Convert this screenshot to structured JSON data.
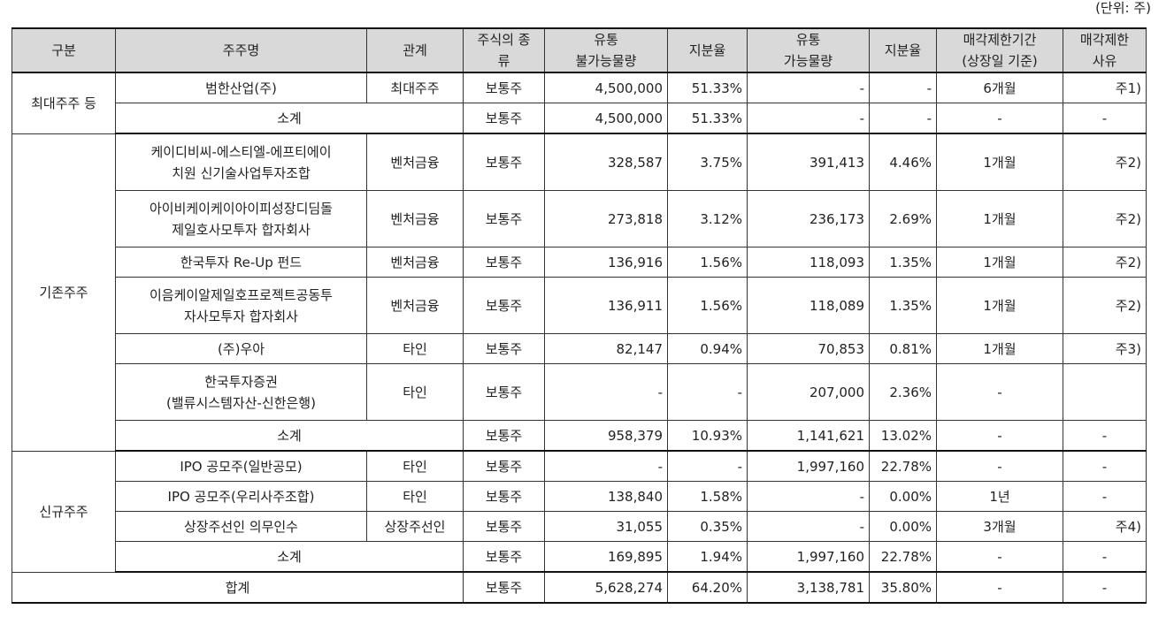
{
  "unit_note": "(단위: 주)",
  "headers": {
    "category": "구분",
    "holder": "주주명",
    "relation": "관계",
    "stock_type": [
      "주식의 종",
      "류"
    ],
    "locked_qty": [
      "유통",
      "불가능물량"
    ],
    "locked_ratio": "지분율",
    "tradable_qty": [
      "유통",
      "가능물량"
    ],
    "tradable_ratio": "지분율",
    "lockup_period": [
      "매각제한기간",
      "(상장일 기준)"
    ],
    "lockup_reason": [
      "매각제한",
      "사유"
    ]
  },
  "groups": {
    "largest": "최대주주 등",
    "existing": "기존주주",
    "new": "신규주주"
  },
  "rows": [
    {
      "holder": "범한산업(주)",
      "relation": "최대주주",
      "type": "보통주",
      "locked": "4,500,000",
      "locked_pct": "51.33%",
      "tradable": "-",
      "tradable_pct": "-",
      "period": "6개월",
      "reason": "주1)"
    },
    {
      "holder": "소계",
      "type": "보통주",
      "locked": "4,500,000",
      "locked_pct": "51.33%",
      "tradable": "-",
      "tradable_pct": "-",
      "period": "-",
      "reason": "-"
    },
    {
      "holder": [
        "케이디비씨-에스티엘-에프티에이",
        "치원 신기술사업투자조합"
      ],
      "relation": "벤처금융",
      "type": "보통주",
      "locked": "328,587",
      "locked_pct": "3.75%",
      "tradable": "391,413",
      "tradable_pct": "4.46%",
      "period": "1개월",
      "reason": "주2)"
    },
    {
      "holder": [
        "아이비케이케이아이피성장디딤돌",
        "제일호사모투자 합자회사"
      ],
      "relation": "벤처금융",
      "type": "보통주",
      "locked": "273,818",
      "locked_pct": "3.12%",
      "tradable": "236,173",
      "tradable_pct": "2.69%",
      "period": "1개월",
      "reason": "주2)"
    },
    {
      "holder": "한국투자 Re-Up 펀드",
      "relation": "벤처금융",
      "type": "보통주",
      "locked": "136,916",
      "locked_pct": "1.56%",
      "tradable": "118,093",
      "tradable_pct": "1.35%",
      "period": "1개월",
      "reason": "주2)"
    },
    {
      "holder": [
        "이음케이알제일호프로젝트공동투",
        "자사모투자 합자회사"
      ],
      "relation": "벤처금융",
      "type": "보통주",
      "locked": "136,911",
      "locked_pct": "1.56%",
      "tradable": "118,089",
      "tradable_pct": "1.35%",
      "period": "1개월",
      "reason": "주2)"
    },
    {
      "holder": "(주)우아",
      "relation": "타인",
      "type": "보통주",
      "locked": "82,147",
      "locked_pct": "0.94%",
      "tradable": "70,853",
      "tradable_pct": "0.81%",
      "period": "1개월",
      "reason": "주3)"
    },
    {
      "holder": [
        "한국투자증권",
        "(밸류시스템자산-신한은행)"
      ],
      "relation": "타인",
      "type": "보통주",
      "locked": "-",
      "locked_pct": "-",
      "tradable": "207,000",
      "tradable_pct": "2.36%",
      "period": "-",
      "reason": ""
    },
    {
      "holder": "소계",
      "type": "보통주",
      "locked": "958,379",
      "locked_pct": "10.93%",
      "tradable": "1,141,621",
      "tradable_pct": "13.02%",
      "period": "-",
      "reason": "-"
    },
    {
      "holder": "IPO 공모주(일반공모)",
      "relation": "타인",
      "type": "보통주",
      "locked": "-",
      "locked_pct": "-",
      "tradable": "1,997,160",
      "tradable_pct": "22.78%",
      "period": "-",
      "reason": "-"
    },
    {
      "holder": "IPO 공모주(우리사주조합)",
      "relation": "타인",
      "type": "보통주",
      "locked": "138,840",
      "locked_pct": "1.58%",
      "tradable": "-",
      "tradable_pct": "0.00%",
      "period": "1년",
      "reason": "-"
    },
    {
      "holder": "상장주선인 의무인수",
      "relation": "상장주선인",
      "type": "보통주",
      "locked": "31,055",
      "locked_pct": "0.35%",
      "tradable": "-",
      "tradable_pct": "0.00%",
      "period": "3개월",
      "reason": "주4)"
    },
    {
      "holder": "소계",
      "type": "보통주",
      "locked": "169,895",
      "locked_pct": "1.94%",
      "tradable": "1,997,160",
      "tradable_pct": "22.78%",
      "period": "-",
      "reason": "-"
    }
  ],
  "total": {
    "label": "합계",
    "type": "보통주",
    "locked": "5,628,274",
    "locked_pct": "64.20%",
    "tradable": "3,138,781",
    "tradable_pct": "35.80%",
    "period": "-",
    "reason": "-"
  }
}
